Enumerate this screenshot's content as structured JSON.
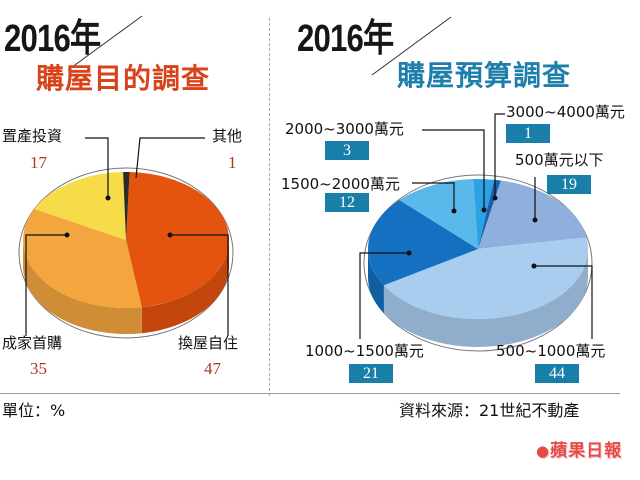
{
  "left": {
    "year": "2016年",
    "title": "購屋目的調查",
    "title_color": "#d9431b",
    "labels": [
      {
        "name": "置產投資",
        "value": "17"
      },
      {
        "name": "其他",
        "value": "1"
      },
      {
        "name": "成家首購",
        "value": "35"
      },
      {
        "name": "換屋自住",
        "value": "47"
      }
    ]
  },
  "right": {
    "year": "2016年",
    "title": "購屋預算調查",
    "title_color": "#1f7fac",
    "labels": [
      {
        "name": "2000~3000萬元",
        "value": "3"
      },
      {
        "name": "3000~4000萬元",
        "value": "1"
      },
      {
        "name": "1500~2000萬元",
        "value": "12"
      },
      {
        "name": "500萬元以下",
        "value": "19"
      },
      {
        "name": "1000~1500萬元",
        "value": "21"
      },
      {
        "name": "500~1000萬元",
        "value": "44"
      }
    ]
  },
  "footer": {
    "unit": "單位：%",
    "source": "資料來源：21世紀不動產",
    "logo": "蘋果日報"
  },
  "chart_data": [
    {
      "type": "pie",
      "title": "購屋目的調查",
      "subtitle": "2016年",
      "unit": "%",
      "slices": [
        {
          "label": "換屋自住",
          "value": 47,
          "color": "#e5540f"
        },
        {
          "label": "成家首購",
          "value": 35,
          "color": "#f3a63e"
        },
        {
          "label": "置產投資",
          "value": 17,
          "color": "#f7dc4a"
        },
        {
          "label": "其他",
          "value": 1,
          "color": "#2a2a2a"
        }
      ]
    },
    {
      "type": "pie",
      "title": "購屋預算調查",
      "subtitle": "2016年",
      "unit": "%",
      "slices": [
        {
          "label": "500~1000萬元",
          "value": 44,
          "color": "#a9cdef"
        },
        {
          "label": "1000~1500萬元",
          "value": 21,
          "color": "#1470c0"
        },
        {
          "label": "1500~2000萬元",
          "value": 12,
          "color": "#5ab8ea"
        },
        {
          "label": "2000~3000萬元",
          "value": 3,
          "color": "#2aa3e3"
        },
        {
          "label": "3000~4000萬元",
          "value": 1,
          "color": "#1c5fb0"
        },
        {
          "label": "500萬元以下",
          "value": 19,
          "color": "#8fb0dc"
        }
      ]
    }
  ]
}
